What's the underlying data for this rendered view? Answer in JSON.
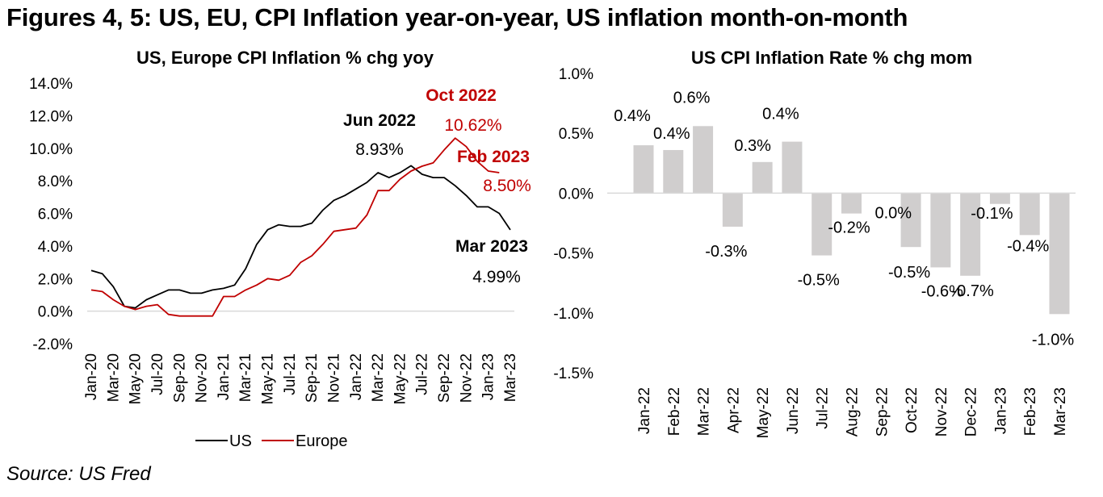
{
  "title": "Figures 4, 5: US, EU, CPI Inflation year-on-year, US inflation month-on-month",
  "source": "Source: US Fred",
  "colors": {
    "us": "#000000",
    "europe": "#c00000",
    "bar": "#d0cece",
    "axis": "#d9d9d9"
  },
  "chart_data": [
    {
      "type": "line",
      "title": "US, Europe CPI Inflation % chg yoy",
      "xlabel": "",
      "ylabel": "",
      "ylim": [
        -2.0,
        14.0
      ],
      "yticks": [
        "14.0%",
        "12.0%",
        "10.0%",
        "8.0%",
        "6.0%",
        "4.0%",
        "2.0%",
        "0.0%",
        "-2.0%"
      ],
      "ytick_values": [
        14,
        12,
        10,
        8,
        6,
        4,
        2,
        0,
        -2
      ],
      "x": [
        "Jan-20",
        "Feb-20",
        "Mar-20",
        "Apr-20",
        "May-20",
        "Jun-20",
        "Jul-20",
        "Aug-20",
        "Sep-20",
        "Oct-20",
        "Nov-20",
        "Dec-20",
        "Jan-21",
        "Feb-21",
        "Mar-21",
        "Apr-21",
        "May-21",
        "Jun-21",
        "Jul-21",
        "Aug-21",
        "Sep-21",
        "Oct-21",
        "Nov-21",
        "Dec-21",
        "Jan-22",
        "Feb-22",
        "Mar-22",
        "Apr-22",
        "May-22",
        "Jun-22",
        "Jul-22",
        "Aug-22",
        "Sep-22",
        "Oct-22",
        "Nov-22",
        "Dec-22",
        "Jan-23",
        "Feb-23",
        "Mar-23"
      ],
      "xticks": [
        "Jan-20",
        "Mar-20",
        "May-20",
        "Jul-20",
        "Sep-20",
        "Nov-20",
        "Jan-21",
        "Mar-21",
        "May-21",
        "Jul-21",
        "Sep-21",
        "Nov-21",
        "Jan-22",
        "Mar-22",
        "May-22",
        "Jul-22",
        "Sep-22",
        "Nov-22",
        "Jan-23",
        "Mar-23"
      ],
      "series": [
        {
          "name": "US",
          "color": "#000000",
          "values": [
            2.5,
            2.3,
            1.5,
            0.3,
            0.2,
            0.7,
            1.0,
            1.3,
            1.3,
            1.1,
            1.1,
            1.3,
            1.4,
            1.6,
            2.6,
            4.1,
            5.0,
            5.3,
            5.2,
            5.2,
            5.4,
            6.2,
            6.8,
            7.1,
            7.5,
            7.9,
            8.5,
            8.2,
            8.5,
            8.93,
            8.4,
            8.2,
            8.2,
            7.7,
            7.1,
            6.4,
            6.4,
            6.0,
            4.99
          ]
        },
        {
          "name": "Europe",
          "color": "#c00000",
          "values": [
            1.3,
            1.2,
            0.7,
            0.3,
            0.1,
            0.3,
            0.4,
            -0.2,
            -0.3,
            -0.3,
            -0.3,
            -0.3,
            0.9,
            0.9,
            1.3,
            1.6,
            2.0,
            1.9,
            2.2,
            3.0,
            3.4,
            4.1,
            4.9,
            5.0,
            5.1,
            5.9,
            7.4,
            7.4,
            8.1,
            8.6,
            8.9,
            9.1,
            9.9,
            10.62,
            10.1,
            9.2,
            8.6,
            8.5
          ]
        }
      ],
      "annotations": [
        {
          "label": "Jun 2022",
          "value": "8.93%",
          "series": "US",
          "color": "#000000"
        },
        {
          "label": "Oct 2022",
          "value": "10.62%",
          "series": "Europe",
          "color": "#c00000"
        },
        {
          "label": "Feb 2023",
          "value": "8.50%",
          "series": "Europe",
          "color": "#c00000"
        },
        {
          "label": "Mar 2023",
          "value": "4.99%",
          "series": "US",
          "color": "#000000"
        }
      ],
      "legend": {
        "placement": "bottom",
        "entries": [
          "US",
          "Europe"
        ]
      },
      "grid": false
    },
    {
      "type": "bar",
      "title": "US CPI Inflation Rate % chg mom",
      "xlabel": "",
      "ylabel": "",
      "ylim": [
        -1.5,
        1.0
      ],
      "yticks": [
        "1.0%",
        "0.5%",
        "0.0%",
        "-0.5%",
        "-1.0%",
        "-1.5%"
      ],
      "ytick_values": [
        1.0,
        0.5,
        0.0,
        -0.5,
        -1.0,
        -1.5
      ],
      "categories": [
        "Jan-22",
        "Feb-22",
        "Mar-22",
        "Apr-22",
        "May-22",
        "Jun-22",
        "Jul-22",
        "Aug-22",
        "Sep-22",
        "Oct-22",
        "Nov-22",
        "Dec-22",
        "Jan-23",
        "Feb-23",
        "Mar-23"
      ],
      "values": [
        0.4,
        0.36,
        0.56,
        -0.28,
        0.26,
        0.43,
        -0.52,
        -0.17,
        0.0,
        -0.45,
        -0.62,
        -0.69,
        -0.09,
        -0.35,
        -1.01
      ],
      "data_labels": [
        "0.4%",
        "0.4%",
        "0.6%",
        "-0.3%",
        "0.3%",
        "0.4%",
        "-0.5%",
        "-0.2%",
        "0.0%",
        "-0.5%",
        "-0.6%",
        "-0.7%",
        "-0.1%",
        "-0.4%",
        "-1.0%"
      ],
      "grid": false
    }
  ]
}
